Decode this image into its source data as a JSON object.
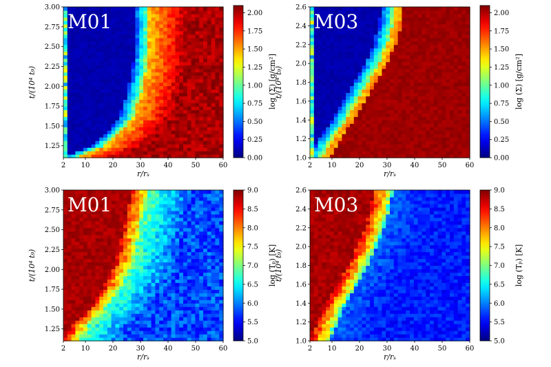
{
  "chart_data": [
    {
      "type": "heatmap",
      "panel_label": "M01",
      "xlabel": "r/rₛ",
      "ylabel": "t/(10⁴ t₉)",
      "xlim": [
        2,
        60
      ],
      "ylim": [
        1.1,
        3.0
      ],
      "xticks": [
        "2",
        "10",
        "20",
        "30",
        "40",
        "50",
        "60"
      ],
      "yticks": [
        "1.25",
        "1.50",
        "1.75",
        "2.00",
        "2.25",
        "2.50",
        "2.75",
        "3.00"
      ],
      "colorbar": {
        "label": "log (Σ) [g/cm²]",
        "range": [
          0.0,
          2.1
        ],
        "ticks": [
          "0.00",
          "0.25",
          "0.50",
          "0.75",
          "1.00",
          "1.25",
          "1.50",
          "1.75",
          "2.00"
        ]
      },
      "boundary": {
        "t": [
          1.1,
          1.25,
          1.4,
          1.6,
          1.9,
          2.2,
          2.5,
          2.8,
          3.0
        ],
        "r": [
          3,
          14,
          19,
          24,
          27,
          29,
          30,
          30,
          30
        ]
      }
    },
    {
      "type": "heatmap",
      "panel_label": "M03",
      "xlabel": "r/rₛ",
      "ylabel": "t/(10⁴ t₉)",
      "xlim": [
        2,
        60
      ],
      "ylim": [
        1.0,
        2.6
      ],
      "xticks": [
        "2",
        "10",
        "20",
        "30",
        "40",
        "50",
        "60"
      ],
      "yticks": [
        "1.0",
        "1.2",
        "1.4",
        "1.6",
        "1.8",
        "2.0",
        "2.2",
        "2.4",
        "2.6"
      ],
      "colorbar": {
        "label": "log (Σ) [g/cm²]",
        "range": [
          0.0,
          2.1
        ],
        "ticks": [
          "0.00",
          "0.25",
          "0.50",
          "0.75",
          "1.00",
          "1.25",
          "1.50",
          "1.75",
          "2.00"
        ]
      },
      "boundary": {
        "t": [
          1.0,
          1.2,
          1.4,
          1.6,
          1.8,
          2.0,
          2.2,
          2.4,
          2.6
        ],
        "r": [
          3,
          7,
          12,
          16,
          20,
          24,
          27,
          29,
          30
        ]
      }
    },
    {
      "type": "heatmap",
      "panel_label": "M01",
      "xlabel": "r/rₛ",
      "ylabel": "t/(10⁴ t₉)",
      "xlim": [
        2,
        60
      ],
      "ylim": [
        1.1,
        3.0
      ],
      "xticks": [
        "2",
        "10",
        "20",
        "30",
        "40",
        "50",
        "60"
      ],
      "yticks": [
        "1.25",
        "1.50",
        "1.75",
        "2.00",
        "2.25",
        "2.50",
        "2.75",
        "3.00"
      ],
      "colorbar": {
        "label": "log (Tₚ) [K]",
        "range": [
          5.0,
          9.0
        ],
        "ticks": [
          "5.0",
          "5.5",
          "6.0",
          "6.5",
          "7.0",
          "7.5",
          "8.0",
          "8.5",
          "9.0"
        ]
      },
      "boundary": {
        "t": [
          1.1,
          1.3,
          1.5,
          1.8,
          2.1,
          2.4,
          2.7,
          3.0
        ],
        "r": [
          3,
          6,
          12,
          18,
          22,
          24,
          26,
          28
        ]
      }
    },
    {
      "type": "heatmap",
      "panel_label": "M03",
      "xlabel": "r/rₛ",
      "ylabel": "t/(10⁴ t₉)",
      "xlim": [
        2,
        60
      ],
      "ylim": [
        1.0,
        2.6
      ],
      "xticks": [
        "2",
        "10",
        "20",
        "30",
        "40",
        "50",
        "60"
      ],
      "yticks": [
        "1.0",
        "1.2",
        "1.4",
        "1.6",
        "1.8",
        "2.0",
        "2.2",
        "2.4",
        "2.6"
      ],
      "colorbar": {
        "label": "log (Tₚ) [K]",
        "range": [
          5.0,
          9.0
        ],
        "ticks": [
          "5.0",
          "5.5",
          "6.0",
          "6.5",
          "7.0",
          "7.5",
          "8.0",
          "8.5",
          "9.0"
        ]
      },
      "boundary": {
        "t": [
          1.0,
          1.2,
          1.4,
          1.6,
          1.8,
          2.0,
          2.2,
          2.4,
          2.6
        ],
        "r": [
          3,
          6,
          9,
          13,
          17,
          20,
          23,
          25,
          26
        ]
      }
    }
  ]
}
